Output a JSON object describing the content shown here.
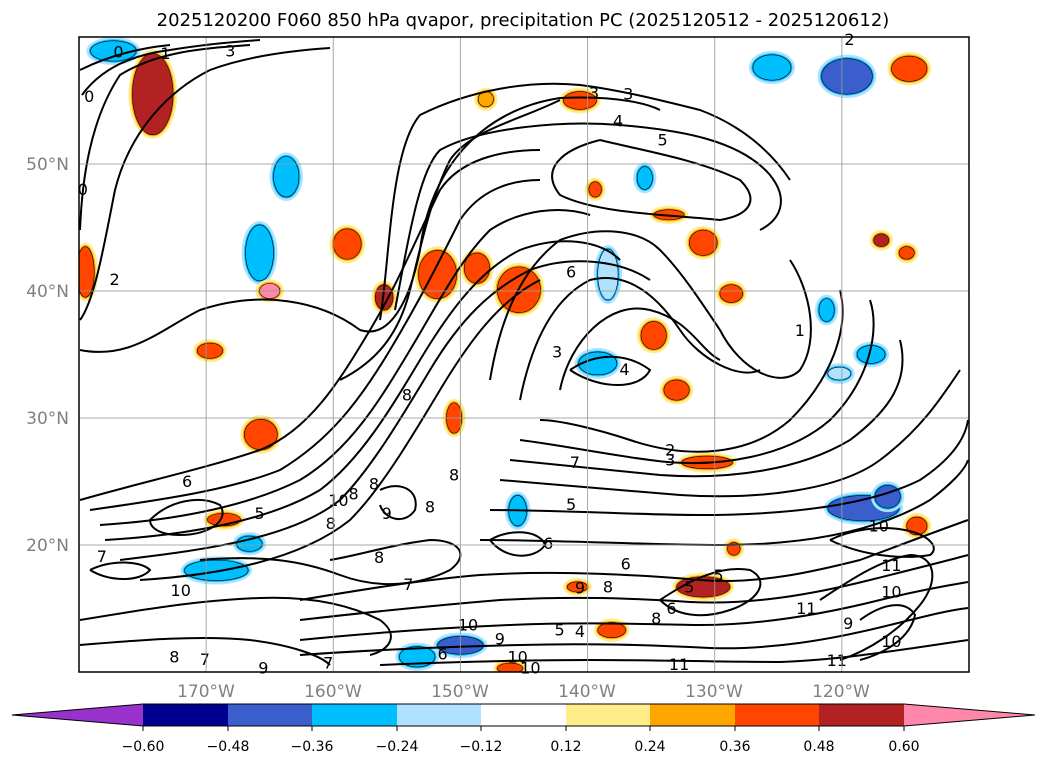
{
  "chart_data": {
    "type": "contour map",
    "title": "2025120200 F060 850 hPa qvapor, precipitation PC (2025120512 - 2025120612)",
    "field": "850 hPa qvapor",
    "shaded_field": "precipitation PC",
    "latitude_ticks": [
      "20°N",
      "30°N",
      "40°N",
      "50°N"
    ],
    "longitude_ticks": [
      "170°W",
      "160°W",
      "150°W",
      "140°W",
      "130°W",
      "120°W"
    ],
    "lat_range": [
      10,
      60
    ],
    "lon_range": [
      -180,
      -110
    ],
    "grid": true,
    "colorbar": {
      "orientation": "horizontal",
      "extend": "both",
      "tick_labels": [
        "−0.60",
        "−0.48",
        "−0.36",
        "−0.24",
        "−0.12",
        "0.12",
        "0.24",
        "0.36",
        "0.48",
        "0.60"
      ],
      "colors": [
        "#9932cc",
        "#000090",
        "#3a5fcd",
        "#00bfff",
        "#b0e2ff",
        "#ffffff",
        "#ffec8b",
        "#ffa500",
        "#ff4500",
        "#b22222",
        "#ff88aa"
      ]
    },
    "contour_labels": [
      {
        "text": "0",
        "lon": -176.9,
        "lat": 58.8
      },
      {
        "text": "1",
        "lon": -173.2,
        "lat": 58.7
      },
      {
        "text": "3",
        "lon": -168.1,
        "lat": 58.9
      },
      {
        "text": "0",
        "lon": -179.2,
        "lat": 55.3
      },
      {
        "text": "0",
        "lon": -179.7,
        "lat": 48.0
      },
      {
        "text": "2",
        "lon": -177.2,
        "lat": 40.9
      },
      {
        "text": "2",
        "lon": -119.4,
        "lat": 59.8
      },
      {
        "text": "3",
        "lon": -139.5,
        "lat": 55.6
      },
      {
        "text": "3",
        "lon": -136.8,
        "lat": 55.5
      },
      {
        "text": "4",
        "lon": -137.6,
        "lat": 53.4
      },
      {
        "text": "5",
        "lon": -134.1,
        "lat": 51.9
      },
      {
        "text": "6",
        "lon": -141.3,
        "lat": 41.5
      },
      {
        "text": "3",
        "lon": -142.4,
        "lat": 35.2
      },
      {
        "text": "4",
        "lon": -137.1,
        "lat": 33.8
      },
      {
        "text": "1",
        "lon": -123.3,
        "lat": 36.9
      },
      {
        "text": "8",
        "lon": -154.2,
        "lat": 31.8
      },
      {
        "text": "8",
        "lon": -150.5,
        "lat": 25.5
      },
      {
        "text": "7",
        "lon": -141.0,
        "lat": 26.5
      },
      {
        "text": "2",
        "lon": -133.5,
        "lat": 27.5
      },
      {
        "text": "3",
        "lon": -133.5,
        "lat": 26.7
      },
      {
        "text": "6",
        "lon": -171.5,
        "lat": 25.0
      },
      {
        "text": "5",
        "lon": -165.8,
        "lat": 22.5
      },
      {
        "text": "10",
        "lon": -159.6,
        "lat": 23.5
      },
      {
        "text": "8",
        "lon": -158.4,
        "lat": 24.0
      },
      {
        "text": "8",
        "lon": -156.8,
        "lat": 24.8
      },
      {
        "text": "9",
        "lon": -155.8,
        "lat": 22.5
      },
      {
        "text": "8",
        "lon": -152.4,
        "lat": 23.0
      },
      {
        "text": "8",
        "lon": -160.2,
        "lat": 21.7
      },
      {
        "text": "5",
        "lon": -141.3,
        "lat": 23.2
      },
      {
        "text": "6",
        "lon": -143.1,
        "lat": 20.1
      },
      {
        "text": "8",
        "lon": -156.4,
        "lat": 19.0
      },
      {
        "text": "6",
        "lon": -137.0,
        "lat": 18.5
      },
      {
        "text": "7",
        "lon": -178.2,
        "lat": 19.1
      },
      {
        "text": "10",
        "lon": -172.0,
        "lat": 16.4
      },
      {
        "text": "7",
        "lon": -154.1,
        "lat": 16.9
      },
      {
        "text": "9",
        "lon": -140.6,
        "lat": 16.6
      },
      {
        "text": "8",
        "lon": -138.4,
        "lat": 16.7
      },
      {
        "text": "5",
        "lon": -132.0,
        "lat": 16.7
      },
      {
        "text": "5",
        "lon": -129.7,
        "lat": 17.6
      },
      {
        "text": "6",
        "lon": -133.4,
        "lat": 15.0
      },
      {
        "text": "8",
        "lon": -134.6,
        "lat": 14.2
      },
      {
        "text": "10",
        "lon": -117.1,
        "lat": 21.5
      },
      {
        "text": "11",
        "lon": -116.1,
        "lat": 18.4
      },
      {
        "text": "10",
        "lon": -116.1,
        "lat": 16.3
      },
      {
        "text": "11",
        "lon": -122.8,
        "lat": 15.0
      },
      {
        "text": "9",
        "lon": -119.5,
        "lat": 13.8
      },
      {
        "text": "10",
        "lon": -149.4,
        "lat": 13.7
      },
      {
        "text": "9",
        "lon": -146.9,
        "lat": 12.6
      },
      {
        "text": "5",
        "lon": -142.2,
        "lat": 13.3
      },
      {
        "text": "4",
        "lon": -140.6,
        "lat": 13.2
      },
      {
        "text": "6",
        "lon": -151.4,
        "lat": 11.4
      },
      {
        "text": "10",
        "lon": -145.5,
        "lat": 11.2
      },
      {
        "text": "11",
        "lon": -132.8,
        "lat": 10.6
      },
      {
        "text": "11",
        "lon": -120.4,
        "lat": 10.9
      },
      {
        "text": "10",
        "lon": -116.1,
        "lat": 12.4
      },
      {
        "text": "8",
        "lon": -172.5,
        "lat": 11.2
      },
      {
        "text": "7",
        "lon": -170.1,
        "lat": 11.0
      },
      {
        "text": "9",
        "lon": -165.5,
        "lat": 10.3
      },
      {
        "text": "7",
        "lon": -160.4,
        "lat": 10.7
      },
      {
        "text": "10",
        "lon": -144.5,
        "lat": 10.3
      }
    ],
    "precip_blobs": [
      {
        "lon": -174.2,
        "lat": 55.5,
        "rx": 1.6,
        "ry": 3.2,
        "value": 0.48
      },
      {
        "lon": -179.5,
        "lat": 41.5,
        "rx": 0.7,
        "ry": 2.0,
        "value": 0.36
      },
      {
        "lon": -163.7,
        "lat": 49.0,
        "rx": 1.0,
        "ry": 1.6,
        "value": -0.36
      },
      {
        "lon": -165.8,
        "lat": 43.0,
        "rx": 1.1,
        "ry": 2.2,
        "value": -0.36
      },
      {
        "lon": -165.0,
        "lat": 40.0,
        "rx": 0.8,
        "ry": 0.6,
        "value": 0.6
      },
      {
        "lon": -158.9,
        "lat": 43.7,
        "rx": 1.1,
        "ry": 1.2,
        "value": 0.36
      },
      {
        "lon": -156.0,
        "lat": 39.5,
        "rx": 0.7,
        "ry": 1.0,
        "value": 0.48
      },
      {
        "lon": -151.8,
        "lat": 41.3,
        "rx": 1.5,
        "ry": 1.9,
        "value": 0.36
      },
      {
        "lon": -145.4,
        "lat": 40.1,
        "rx": 1.7,
        "ry": 1.8,
        "value": 0.36
      },
      {
        "lon": -148.7,
        "lat": 41.8,
        "rx": 1.0,
        "ry": 1.2,
        "value": 0.36
      },
      {
        "lon": -139.2,
        "lat": 34.3,
        "rx": 1.5,
        "ry": 0.9,
        "value": -0.36
      },
      {
        "lon": -134.8,
        "lat": 36.5,
        "rx": 1.0,
        "ry": 1.1,
        "value": 0.36
      },
      {
        "lon": -133.0,
        "lat": 32.2,
        "rx": 1.0,
        "ry": 0.8,
        "value": 0.36
      },
      {
        "lon": -130.6,
        "lat": 26.5,
        "rx": 2.0,
        "ry": 0.5,
        "value": 0.36
      },
      {
        "lon": -130.9,
        "lat": 43.8,
        "rx": 1.1,
        "ry": 1.0,
        "value": 0.36
      },
      {
        "lon": -128.7,
        "lat": 39.8,
        "rx": 0.9,
        "ry": 0.7,
        "value": 0.36
      },
      {
        "lon": -138.4,
        "lat": 41.3,
        "rx": 0.8,
        "ry": 2.0,
        "value": -0.24
      },
      {
        "lon": -140.6,
        "lat": 55.0,
        "rx": 1.3,
        "ry": 0.7,
        "value": 0.36
      },
      {
        "lon": -148.0,
        "lat": 55.1,
        "rx": 0.6,
        "ry": 0.6,
        "value": 0.24
      },
      {
        "lon": -135.5,
        "lat": 48.9,
        "rx": 0.6,
        "ry": 0.9,
        "value": -0.36
      },
      {
        "lon": -139.4,
        "lat": 48.0,
        "rx": 0.5,
        "ry": 0.6,
        "value": 0.36
      },
      {
        "lon": -133.6,
        "lat": 46.0,
        "rx": 1.2,
        "ry": 0.4,
        "value": 0.36
      },
      {
        "lon": -119.6,
        "lat": 56.9,
        "rx": 2.0,
        "ry": 1.4,
        "value": -0.48
      },
      {
        "lon": -125.5,
        "lat": 57.6,
        "rx": 1.5,
        "ry": 1.0,
        "value": -0.36
      },
      {
        "lon": -114.7,
        "lat": 57.5,
        "rx": 1.4,
        "ry": 1.0,
        "value": 0.36
      },
      {
        "lon": -118.3,
        "lat": 22.9,
        "rx": 2.8,
        "ry": 1.0,
        "value": -0.48
      },
      {
        "lon": -116.4,
        "lat": 23.8,
        "rx": 1.0,
        "ry": 0.9,
        "value": -0.48
      },
      {
        "lon": -114.1,
        "lat": 21.5,
        "rx": 0.8,
        "ry": 0.7,
        "value": 0.36
      },
      {
        "lon": -121.2,
        "lat": 38.5,
        "rx": 0.6,
        "ry": 0.9,
        "value": -0.36
      },
      {
        "lon": -117.7,
        "lat": 35.0,
        "rx": 1.1,
        "ry": 0.7,
        "value": -0.36
      },
      {
        "lon": -120.2,
        "lat": 33.5,
        "rx": 0.9,
        "ry": 0.5,
        "value": -0.24
      },
      {
        "lon": -116.9,
        "lat": 44.0,
        "rx": 0.6,
        "ry": 0.5,
        "value": 0.48
      },
      {
        "lon": -114.9,
        "lat": 43.0,
        "rx": 0.6,
        "ry": 0.5,
        "value": 0.36
      },
      {
        "lon": -165.7,
        "lat": 28.7,
        "rx": 1.3,
        "ry": 1.2,
        "value": 0.36
      },
      {
        "lon": -168.6,
        "lat": 22.0,
        "rx": 1.3,
        "ry": 0.5,
        "value": 0.36
      },
      {
        "lon": -169.2,
        "lat": 18.0,
        "rx": 2.5,
        "ry": 0.8,
        "value": -0.36
      },
      {
        "lon": -166.6,
        "lat": 20.1,
        "rx": 1.0,
        "ry": 0.6,
        "value": -0.36
      },
      {
        "lon": -169.7,
        "lat": 35.3,
        "rx": 1.0,
        "ry": 0.6,
        "value": 0.36
      },
      {
        "lon": -150.5,
        "lat": 30.0,
        "rx": 0.6,
        "ry": 1.2,
        "value": 0.36
      },
      {
        "lon": -145.5,
        "lat": 22.7,
        "rx": 0.7,
        "ry": 1.2,
        "value": -0.36
      },
      {
        "lon": -130.9,
        "lat": 16.7,
        "rx": 2.1,
        "ry": 0.8,
        "value": 0.48
      },
      {
        "lon": -128.5,
        "lat": 19.7,
        "rx": 0.5,
        "ry": 0.5,
        "value": 0.36
      },
      {
        "lon": -140.8,
        "lat": 16.7,
        "rx": 0.8,
        "ry": 0.4,
        "value": 0.36
      },
      {
        "lon": -138.1,
        "lat": 13.3,
        "rx": 1.1,
        "ry": 0.6,
        "value": 0.36
      },
      {
        "lon": -150.0,
        "lat": 12.1,
        "rx": 1.8,
        "ry": 0.7,
        "value": -0.48
      },
      {
        "lon": -153.4,
        "lat": 11.2,
        "rx": 1.4,
        "ry": 0.8,
        "value": -0.36
      },
      {
        "lon": -146.1,
        "lat": 10.3,
        "rx": 1.0,
        "ry": 0.4,
        "value": 0.36
      },
      {
        "lon": -177.3,
        "lat": 58.9,
        "rx": 1.8,
        "ry": 0.8,
        "value": -0.36
      }
    ]
  }
}
